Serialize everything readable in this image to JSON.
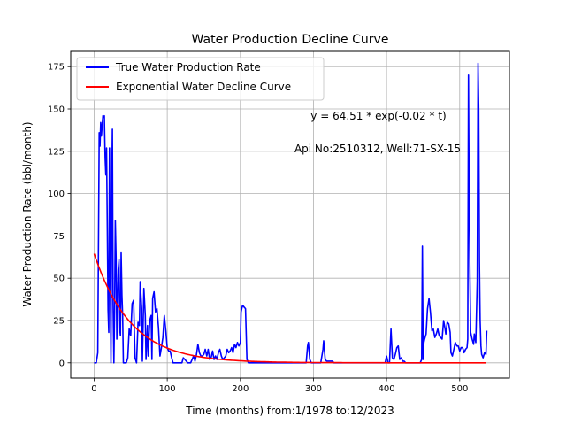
{
  "chart_data": {
    "type": "line",
    "title": "Water Production Decline Curve",
    "xlabel": "Time (months) from:1/1978 to:12/2023",
    "ylabel": "Water Production Rate (bbl/month)",
    "xlim": [
      -32,
      568
    ],
    "ylim": [
      -9,
      184
    ],
    "xticks": [
      0,
      100,
      200,
      300,
      400,
      500
    ],
    "yticks": [
      0,
      25,
      50,
      75,
      100,
      125,
      150,
      175
    ],
    "grid": true,
    "legend_position": "upper-left",
    "annotations": [
      "y = 64.51 * exp(-0.02 * t)",
      "Api No:2510312, Well:71-SX-15"
    ],
    "series": [
      {
        "name": "True Water Production Rate",
        "color": "#0000ff",
        "points": [
          [
            0,
            0
          ],
          [
            3,
            0
          ],
          [
            5,
            6
          ],
          [
            7,
            136
          ],
          [
            8,
            128
          ],
          [
            9,
            142
          ],
          [
            10,
            134
          ],
          [
            11,
            140
          ],
          [
            12,
            146
          ],
          [
            13,
            145
          ],
          [
            14,
            146
          ],
          [
            15,
            121
          ],
          [
            16,
            111
          ],
          [
            17,
            127
          ],
          [
            18,
            83
          ],
          [
            19,
            31
          ],
          [
            20,
            18
          ],
          [
            21,
            127
          ],
          [
            22,
            60
          ],
          [
            23,
            0
          ],
          [
            24,
            100
          ],
          [
            25,
            138
          ],
          [
            26,
            34
          ],
          [
            27,
            0
          ],
          [
            28,
            30
          ],
          [
            29,
            84
          ],
          [
            30,
            61
          ],
          [
            31,
            14
          ],
          [
            32,
            36
          ],
          [
            33,
            55
          ],
          [
            34,
            61
          ],
          [
            35,
            20
          ],
          [
            36,
            16
          ],
          [
            37,
            65
          ],
          [
            38,
            40
          ],
          [
            39,
            28
          ],
          [
            40,
            0
          ],
          [
            42,
            0
          ],
          [
            44,
            0
          ],
          [
            46,
            3
          ],
          [
            48,
            20
          ],
          [
            50,
            16
          ],
          [
            52,
            35
          ],
          [
            54,
            37
          ],
          [
            56,
            3
          ],
          [
            58,
            0
          ],
          [
            60,
            24
          ],
          [
            62,
            22
          ],
          [
            63,
            48
          ],
          [
            65,
            32
          ],
          [
            66,
            1
          ],
          [
            68,
            44
          ],
          [
            70,
            28
          ],
          [
            71,
            2
          ],
          [
            73,
            22
          ],
          [
            74,
            4
          ],
          [
            76,
            25
          ],
          [
            78,
            28
          ],
          [
            79,
            2
          ],
          [
            80,
            38
          ],
          [
            82,
            42
          ],
          [
            84,
            30
          ],
          [
            86,
            32
          ],
          [
            88,
            21
          ],
          [
            90,
            4
          ],
          [
            92,
            9
          ],
          [
            94,
            15
          ],
          [
            96,
            28
          ],
          [
            98,
            19
          ],
          [
            100,
            9
          ],
          [
            102,
            7
          ],
          [
            104,
            7
          ],
          [
            106,
            3
          ],
          [
            108,
            0
          ],
          [
            112,
            0
          ],
          [
            116,
            0
          ],
          [
            120,
            0
          ],
          [
            122,
            3
          ],
          [
            124,
            2
          ],
          [
            128,
            0
          ],
          [
            132,
            0
          ],
          [
            136,
            4
          ],
          [
            138,
            1
          ],
          [
            140,
            5
          ],
          [
            142,
            11
          ],
          [
            144,
            6
          ],
          [
            146,
            4
          ],
          [
            148,
            4
          ],
          [
            150,
            5
          ],
          [
            152,
            8
          ],
          [
            154,
            4
          ],
          [
            156,
            8
          ],
          [
            158,
            2
          ],
          [
            160,
            3
          ],
          [
            162,
            7
          ],
          [
            164,
            2
          ],
          [
            166,
            4
          ],
          [
            168,
            2
          ],
          [
            170,
            6
          ],
          [
            172,
            8
          ],
          [
            174,
            4
          ],
          [
            176,
            2
          ],
          [
            178,
            3
          ],
          [
            180,
            4
          ],
          [
            182,
            8
          ],
          [
            184,
            6
          ],
          [
            186,
            7
          ],
          [
            188,
            9
          ],
          [
            190,
            6
          ],
          [
            192,
            11
          ],
          [
            194,
            9
          ],
          [
            196,
            12
          ],
          [
            198,
            10
          ],
          [
            200,
            12
          ],
          [
            201,
            30
          ],
          [
            202,
            32
          ],
          [
            203,
            34
          ],
          [
            205,
            33
          ],
          [
            207,
            32
          ],
          [
            209,
            2
          ],
          [
            211,
            0
          ],
          [
            250,
            0
          ],
          [
            290,
            0
          ],
          [
            292,
            10
          ],
          [
            293,
            12
          ],
          [
            295,
            2
          ],
          [
            297,
            0
          ],
          [
            310,
            0
          ],
          [
            313,
            8
          ],
          [
            314,
            13
          ],
          [
            316,
            2
          ],
          [
            318,
            1
          ],
          [
            324,
            1
          ],
          [
            326,
            1
          ],
          [
            328,
            0
          ],
          [
            398,
            0
          ],
          [
            400,
            4
          ],
          [
            402,
            0
          ],
          [
            404,
            0
          ],
          [
            406,
            20
          ],
          [
            408,
            3
          ],
          [
            410,
            2
          ],
          [
            412,
            5
          ],
          [
            414,
            9
          ],
          [
            416,
            10
          ],
          [
            418,
            2
          ],
          [
            420,
            3
          ],
          [
            422,
            1
          ],
          [
            424,
            1
          ],
          [
            426,
            0
          ],
          [
            446,
            0
          ],
          [
            448,
            2
          ],
          [
            449,
            69
          ],
          [
            450,
            2
          ],
          [
            451,
            12
          ],
          [
            452,
            14
          ],
          [
            454,
            17
          ],
          [
            456,
            32
          ],
          [
            458,
            38
          ],
          [
            460,
            30
          ],
          [
            462,
            19
          ],
          [
            464,
            20
          ],
          [
            466,
            15
          ],
          [
            468,
            17
          ],
          [
            470,
            20
          ],
          [
            472,
            16
          ],
          [
            474,
            15
          ],
          [
            476,
            14
          ],
          [
            478,
            25
          ],
          [
            480,
            20
          ],
          [
            481,
            17
          ],
          [
            483,
            24
          ],
          [
            485,
            23
          ],
          [
            487,
            18
          ],
          [
            488,
            6
          ],
          [
            490,
            4
          ],
          [
            492,
            8
          ],
          [
            494,
            12
          ],
          [
            496,
            10
          ],
          [
            498,
            10
          ],
          [
            500,
            7
          ],
          [
            502,
            9
          ],
          [
            504,
            9
          ],
          [
            506,
            6
          ],
          [
            508,
            8
          ],
          [
            510,
            9
          ],
          [
            511,
            14
          ],
          [
            512,
            170
          ],
          [
            513,
            95
          ],
          [
            514,
            50
          ],
          [
            515,
            18
          ],
          [
            517,
            14
          ],
          [
            519,
            11
          ],
          [
            520,
            17
          ],
          [
            522,
            12
          ],
          [
            524,
            48
          ],
          [
            525,
            177
          ],
          [
            526,
            150
          ],
          [
            527,
            60
          ],
          [
            528,
            25
          ],
          [
            529,
            10
          ],
          [
            530,
            5
          ],
          [
            532,
            3
          ],
          [
            534,
            6
          ],
          [
            536,
            5
          ],
          [
            537,
            19
          ]
        ]
      },
      {
        "name": "Exponential Water Decline Curve",
        "color": "#ff0000",
        "equation": {
          "a": 64.51,
          "b": -0.02
        },
        "x_range": [
          0,
          537
        ]
      }
    ]
  }
}
